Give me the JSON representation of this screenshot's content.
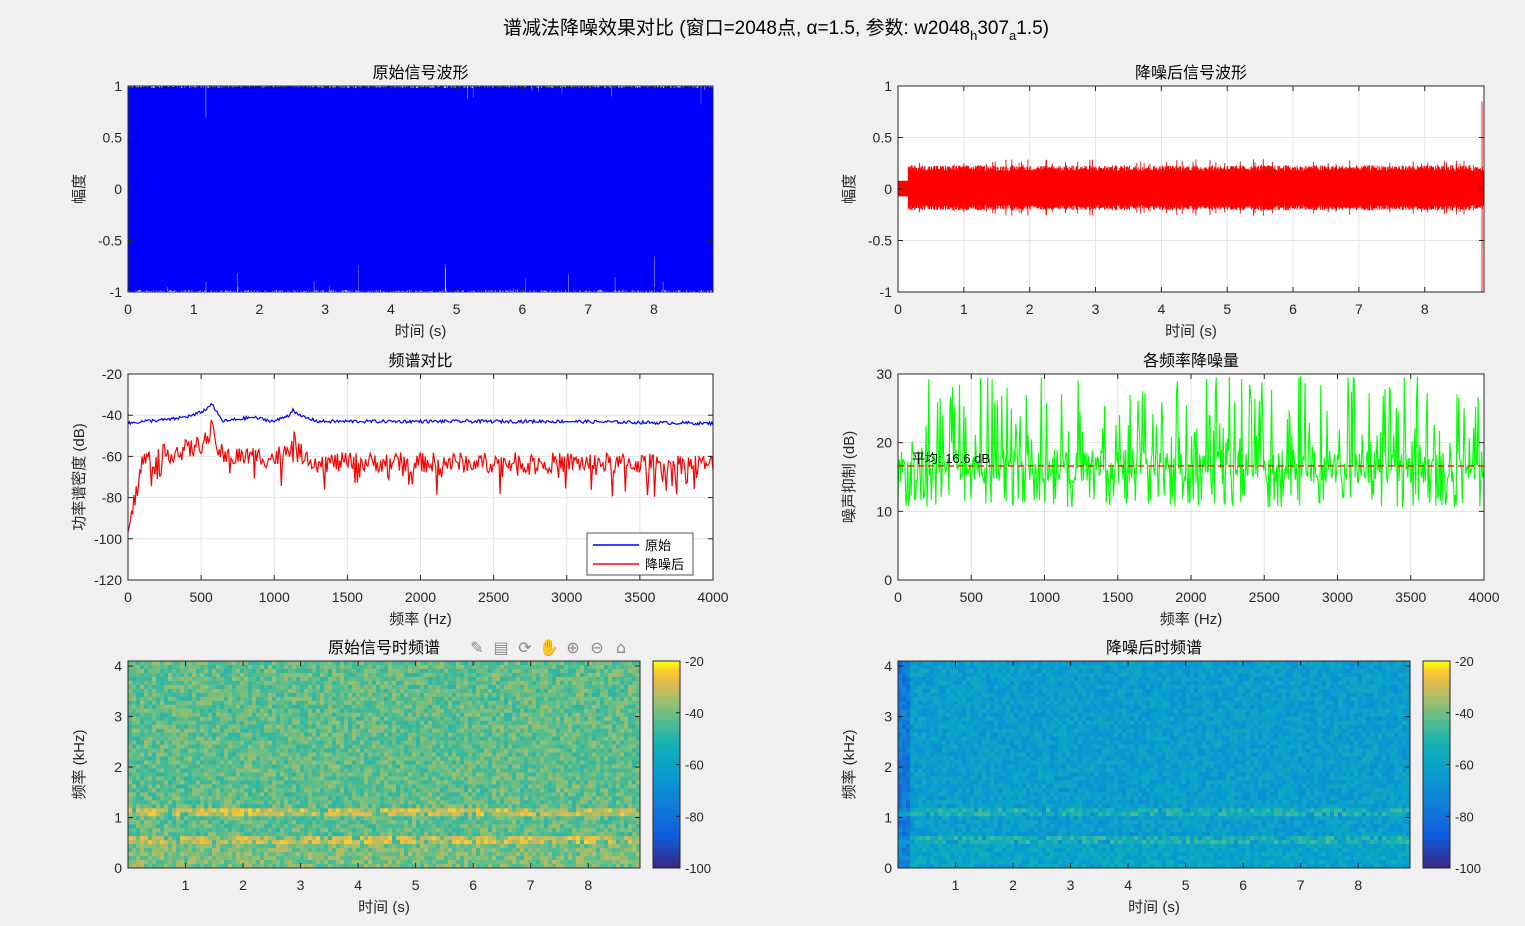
{
  "figure": {
    "title_main": "谱减法降噪效果对比 (窗口=2048点, α=1.5, 参数: w2048",
    "title_sub1": "h",
    "title_mid": "307",
    "title_sub2": "a",
    "title_end": "1.5)"
  },
  "toolbar": {
    "icons": [
      "brush-icon",
      "datatip-icon",
      "rotate-icon",
      "pan-icon",
      "zoom-in-icon",
      "zoom-out-icon",
      "home-icon"
    ]
  },
  "colors": {
    "original": "#0000ff",
    "denoised": "#ff0000",
    "reduction": "#00ff00",
    "mean_line": "#ff0000",
    "background": "#f0f0f0"
  },
  "chart_data": [
    {
      "id": "p1",
      "type": "line",
      "title": "原始信号波形",
      "xlabel": "时间 (s)",
      "ylabel": "幅度",
      "xlim": [
        0,
        8.9
      ],
      "ylim": [
        -1,
        1
      ],
      "xticks": [
        0,
        1,
        2,
        3,
        4,
        5,
        6,
        7,
        8
      ],
      "yticks": [
        -1,
        -0.5,
        0,
        0.5,
        1
      ],
      "ytick_labels": [
        "-1",
        "-0.5",
        "0",
        "0.5",
        "1"
      ],
      "grid": false,
      "series": [
        {
          "color": "#0000ff",
          "envelope": [
            -1,
            1
          ]
        }
      ]
    },
    {
      "id": "p2",
      "type": "line",
      "title": "降噪后信号波形",
      "xlabel": "时间 (s)",
      "ylabel": "幅度",
      "xlim": [
        0,
        8.9
      ],
      "ylim": [
        -1,
        1
      ],
      "xticks": [
        0,
        1,
        2,
        3,
        4,
        5,
        6,
        7,
        8
      ],
      "yticks": [
        -1,
        -0.5,
        0,
        0.5,
        1
      ],
      "ytick_labels": [
        "-1",
        "-0.5",
        "0",
        "0.5",
        "1"
      ],
      "grid": true,
      "series": [
        {
          "color": "#ff0000",
          "envelope": [
            -0.25,
            0.3
          ],
          "end_spike": [
            -1,
            0.85
          ]
        }
      ]
    },
    {
      "id": "p3",
      "type": "line",
      "title": "频谱对比",
      "xlabel": "频率 (Hz)",
      "ylabel": "功率谱密度 (dB)",
      "xlim": [
        0,
        4000
      ],
      "ylim": [
        -120,
        -20
      ],
      "xticks": [
        0,
        500,
        1000,
        1500,
        2000,
        2500,
        3000,
        3500,
        4000
      ],
      "yticks": [
        -120,
        -100,
        -80,
        -60,
        -40,
        -20
      ],
      "ytick_labels": [
        "-120",
        "-100",
        "-80",
        "-60",
        "-40",
        "-20"
      ],
      "grid": true,
      "legend": {
        "position": "bottom-right",
        "entries": [
          "原始",
          "降噪后"
        ]
      },
      "series": [
        {
          "name": "原始",
          "color": "#0000ff",
          "x": [
            0,
            100,
            300,
            450,
            540,
            570,
            600,
            650,
            850,
            1000,
            1100,
            1130,
            1160,
            1300,
            2000,
            3000,
            4000
          ],
          "y": [
            -44,
            -43,
            -42,
            -40,
            -37,
            -34,
            -38,
            -43,
            -41,
            -43,
            -40,
            -37,
            -40,
            -43,
            -43,
            -43,
            -44
          ]
        },
        {
          "name": "降噪后",
          "color": "#ff0000",
          "x": [
            0,
            100,
            300,
            450,
            540,
            570,
            600,
            650,
            850,
            1000,
            1100,
            1130,
            1160,
            1300,
            2000,
            3000,
            4000
          ],
          "y": [
            -97,
            -62,
            -58,
            -56,
            -52,
            -47,
            -54,
            -60,
            -60,
            -61,
            -56,
            -50,
            -58,
            -63,
            -63,
            -63,
            -64
          ]
        }
      ]
    },
    {
      "id": "p4",
      "type": "line",
      "title": "各频率降噪量",
      "xlabel": "频率 (Hz)",
      "ylabel": "噪声抑制 (dB)",
      "xlim": [
        0,
        4000
      ],
      "ylim": [
        0,
        30
      ],
      "xticks": [
        0,
        500,
        1000,
        1500,
        2000,
        2500,
        3000,
        3500,
        4000
      ],
      "yticks": [
        0,
        10,
        20,
        30
      ],
      "ytick_labels": [
        "0",
        "10",
        "20",
        "30"
      ],
      "grid": true,
      "mean": 16.6,
      "mean_label": "平均: 16.6 dB",
      "series": [
        {
          "color": "#00ff00",
          "range": [
            10.5,
            30
          ]
        }
      ]
    },
    {
      "id": "p5",
      "type": "heatmap",
      "title": "原始信号时频谱",
      "xlabel": "时间 (s)",
      "ylabel": "频率 (kHz)",
      "xlim": [
        0,
        8.9
      ],
      "ylim": [
        0,
        4.1
      ],
      "xticks": [
        1,
        2,
        3,
        4,
        5,
        6,
        7,
        8
      ],
      "yticks": [
        0,
        1,
        2,
        3,
        4
      ],
      "clim": [
        -100,
        -20
      ],
      "cticks": [
        -100,
        -80,
        -60,
        -40,
        -20
      ],
      "base_level": -42,
      "harmonics_khz": [
        0.55,
        1.1
      ]
    },
    {
      "id": "p6",
      "type": "heatmap",
      "title": "降噪后时频谱",
      "xlabel": "时间 (s)",
      "ylabel": "频率 (kHz)",
      "xlim": [
        0,
        8.9
      ],
      "ylim": [
        0,
        4.1
      ],
      "xticks": [
        1,
        2,
        3,
        4,
        5,
        6,
        7,
        8
      ],
      "yticks": [
        0,
        1,
        2,
        3,
        4
      ],
      "clim": [
        -100,
        -20
      ],
      "cticks": [
        -100,
        -80,
        -60,
        -40,
        -20
      ],
      "base_level": -63,
      "harmonics_khz": [
        0.55,
        1.1
      ]
    }
  ]
}
